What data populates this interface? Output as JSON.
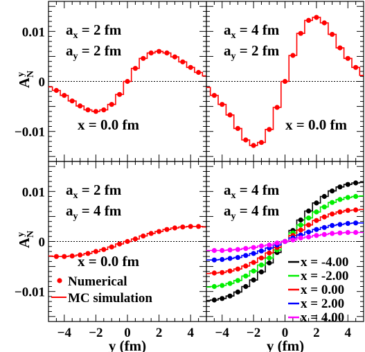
{
  "chart_data": {
    "type": "scatter",
    "xlabel": "y (fm)",
    "ylabel_main": "A",
    "ylabel_sub": "N",
    "ylabel_sup": "y",
    "x_ticks": [
      "−4",
      "−2",
      "0",
      "2",
      "4"
    ],
    "y_ticks": [
      "0.01",
      "0",
      "−0.01"
    ],
    "xlim": [
      -5,
      5
    ],
    "ylim": [
      -0.016,
      0.016
    ],
    "panels": [
      {
        "ax_main": "a",
        "ax_sub": "x",
        "ax_val": " = 2 fm",
        "ay_main": "a",
        "ay_sub": "y",
        "ay_val": " = 2 fm",
        "xpos_label": "x = 0.0 fm",
        "series": [
          {
            "color": "#ff0000",
            "x": [
              -5,
              -4.5,
              -4,
              -3.5,
              -3,
              -2.5,
              -2,
              -1.5,
              -1,
              -0.5,
              0,
              0.5,
              1,
              1.5,
              2,
              2.5,
              3,
              3.5,
              4,
              4.5,
              5
            ],
            "y": [
              -0.0011,
              -0.0018,
              -0.0028,
              -0.0039,
              -0.0049,
              -0.0057,
              -0.006,
              -0.0057,
              -0.0046,
              -0.0026,
              0,
              0.0026,
              0.0046,
              0.0057,
              0.006,
              0.0057,
              0.0049,
              0.0039,
              0.0028,
              0.0018,
              0.0011
            ]
          }
        ]
      },
      {
        "ax_main": "a",
        "ax_sub": "x",
        "ax_val": " = 4 fm",
        "ay_main": "a",
        "ay_sub": "y",
        "ay_val": " = 2 fm",
        "xpos_label": "x = 0.0 fm",
        "series": [
          {
            "color": "#ff0000",
            "x": [
              -5,
              -4.5,
              -4,
              -3.5,
              -3,
              -2.5,
              -2,
              -1.5,
              -1,
              -0.5,
              0,
              0.5,
              1,
              1.5,
              2,
              2.5,
              3,
              3.5,
              4,
              4.5,
              5
            ],
            "y": [
              -0.0012,
              -0.0028,
              -0.0046,
              -0.0067,
              -0.0094,
              -0.0117,
              -0.0128,
              -0.0122,
              -0.0096,
              -0.0052,
              0,
              0.0052,
              0.0096,
              0.0122,
              0.0128,
              0.0117,
              0.0094,
              0.0067,
              0.0046,
              0.0028,
              0.0012
            ]
          }
        ]
      },
      {
        "ax_main": "a",
        "ax_sub": "x",
        "ax_val": " = 2 fm",
        "ay_main": "a",
        "ay_sub": "y",
        "ay_val": " = 4 fm",
        "xpos_label": "x = 0.0 fm",
        "legend": [
          {
            "marker": "dot",
            "label": "Numerical"
          },
          {
            "marker": "line",
            "label": "MC simulation"
          }
        ],
        "series": [
          {
            "color": "#ff0000",
            "x": [
              -5,
              -4.5,
              -4,
              -3.5,
              -3,
              -2.5,
              -2,
              -1.5,
              -1,
              -0.5,
              0,
              0.5,
              1,
              1.5,
              2,
              2.5,
              3,
              3.5,
              4,
              4.5,
              5
            ],
            "y": [
              -0.0029,
              -0.003,
              -0.003,
              -0.0029,
              -0.0027,
              -0.0024,
              -0.002,
              -0.0016,
              -0.0011,
              -0.0005,
              0,
              0.0005,
              0.0011,
              0.0016,
              0.002,
              0.0024,
              0.0027,
              0.0029,
              0.003,
              0.003,
              0.0029
            ]
          }
        ]
      },
      {
        "ax_main": "a",
        "ax_sub": "x",
        "ax_val": " = 4 fm",
        "ay_main": "a",
        "ay_sub": "y",
        "ay_val": " = 4 fm",
        "legend": [
          {
            "color": "#000000",
            "label": "x = -4.00"
          },
          {
            "color": "#00ee00",
            "label": "x = -2.00"
          },
          {
            "color": "#ff0000",
            "label": "x =  0.00"
          },
          {
            "color": "#0000ff",
            "label": "x =  2.00"
          },
          {
            "color": "#ff00ff",
            "label": "x =  4.00"
          }
        ],
        "series": [
          {
            "color": "#000000",
            "x": [
              -5,
              -4.5,
              -4,
              -3.5,
              -3,
              -2.5,
              -2,
              -1.5,
              -1,
              -0.5,
              0,
              0.5,
              1,
              1.5,
              2,
              2.5,
              3,
              3.5,
              4,
              4.5,
              5
            ],
            "y": [
              -0.0118,
              -0.0117,
              -0.0114,
              -0.0109,
              -0.0101,
              -0.009,
              -0.0077,
              -0.0061,
              -0.0043,
              -0.0022,
              0,
              0.0022,
              0.0043,
              0.0061,
              0.0077,
              0.009,
              0.0101,
              0.0109,
              0.0114,
              0.0117,
              0.0118
            ]
          },
          {
            "color": "#00ee00",
            "x": [
              -5,
              -4.5,
              -4,
              -3.5,
              -3,
              -2.5,
              -2,
              -1.5,
              -1,
              -0.5,
              0,
              0.5,
              1,
              1.5,
              2,
              2.5,
              3,
              3.5,
              4,
              4.5,
              5
            ],
            "y": [
              -0.0091,
              -0.009,
              -0.0088,
              -0.0084,
              -0.0078,
              -0.0069,
              -0.0059,
              -0.0047,
              -0.0033,
              -0.0017,
              0,
              0.0017,
              0.0033,
              0.0047,
              0.0059,
              0.0069,
              0.0078,
              0.0084,
              0.0088,
              0.009,
              0.0091
            ]
          },
          {
            "color": "#ff0000",
            "x": [
              -5,
              -4.5,
              -4,
              -3.5,
              -3,
              -2.5,
              -2,
              -1.5,
              -1,
              -0.5,
              0,
              0.5,
              1,
              1.5,
              2,
              2.5,
              3,
              3.5,
              4,
              4.5,
              5
            ],
            "y": [
              -0.0064,
              -0.0063,
              -0.0062,
              -0.0059,
              -0.0055,
              -0.0049,
              -0.0042,
              -0.0033,
              -0.0023,
              -0.0012,
              0,
              0.0012,
              0.0023,
              0.0033,
              0.0042,
              0.0049,
              0.0055,
              0.0059,
              0.0062,
              0.0063,
              0.0064
            ]
          },
          {
            "color": "#0000ff",
            "x": [
              -5,
              -4.5,
              -4,
              -3.5,
              -3,
              -2.5,
              -2,
              -1.5,
              -1,
              -0.5,
              0,
              0.5,
              1,
              1.5,
              2,
              2.5,
              3,
              3.5,
              4,
              4.5,
              5
            ],
            "y": [
              -0.0037,
              -0.0037,
              -0.0036,
              -0.0034,
              -0.0032,
              -0.0028,
              -0.0024,
              -0.0019,
              -0.0013,
              -0.0007,
              0,
              0.0007,
              0.0013,
              0.0019,
              0.0024,
              0.0028,
              0.0032,
              0.0034,
              0.0036,
              0.0037,
              0.0037
            ]
          },
          {
            "color": "#ff00ff",
            "x": [
              -5,
              -4.5,
              -4,
              -3.5,
              -3,
              -2.5,
              -2,
              -1.5,
              -1,
              -0.5,
              0,
              0.5,
              1,
              1.5,
              2,
              2.5,
              3,
              3.5,
              4,
              4.5,
              5
            ],
            "y": [
              -0.0018,
              -0.0018,
              -0.0018,
              -0.0017,
              -0.0016,
              -0.0014,
              -0.0012,
              -0.0009,
              -0.0007,
              -0.0003,
              0,
              0.0003,
              0.0007,
              0.0009,
              0.0012,
              0.0014,
              0.0016,
              0.0017,
              0.0018,
              0.0018,
              0.0018
            ]
          }
        ]
      }
    ]
  }
}
